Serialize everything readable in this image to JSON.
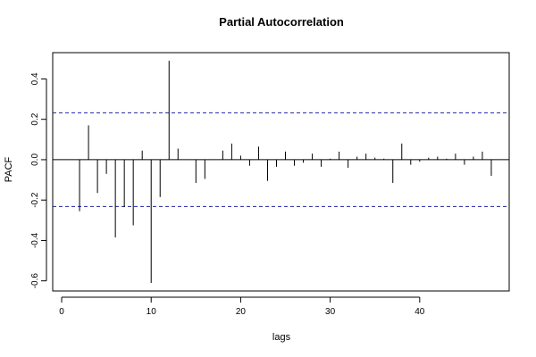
{
  "chart_data": {
    "type": "bar",
    "title": "Partial Autocorrelation",
    "xlabel": "lags",
    "ylabel": "PACF",
    "x": [
      1,
      2,
      3,
      4,
      5,
      6,
      7,
      8,
      9,
      10,
      11,
      12,
      13,
      14,
      15,
      16,
      17,
      18,
      19,
      20,
      21,
      22,
      23,
      24,
      25,
      26,
      27,
      28,
      29,
      30,
      31,
      32,
      33,
      34,
      35,
      36,
      37,
      38,
      39,
      40,
      41,
      42,
      43,
      44,
      45,
      46,
      47,
      48
    ],
    "values": [
      0.0,
      -0.255,
      0.17,
      -0.165,
      -0.07,
      -0.385,
      -0.235,
      -0.325,
      0.045,
      -0.61,
      -0.185,
      0.49,
      0.055,
      0.0,
      -0.115,
      -0.095,
      0.0,
      0.045,
      0.08,
      0.02,
      -0.03,
      0.065,
      -0.105,
      -0.035,
      0.04,
      -0.03,
      -0.015,
      0.03,
      -0.035,
      0.005,
      0.04,
      -0.04,
      0.015,
      0.03,
      0.01,
      0.005,
      -0.115,
      0.08,
      -0.025,
      -0.01,
      0.01,
      0.015,
      0.005,
      0.03,
      -0.025,
      0.015,
      0.04,
      -0.08
    ],
    "confidence_band": [
      0.232,
      -0.232
    ],
    "xlim": [
      -1,
      50
    ],
    "ylim": [
      -0.65,
      0.53
    ],
    "x_ticks": [
      0,
      10,
      20,
      30,
      40
    ],
    "y_ticks": [
      -0.6,
      -0.4,
      -0.2,
      0.0,
      0.2,
      0.4
    ],
    "x_tick_labels": [
      "0",
      "10",
      "20",
      "30",
      "40"
    ],
    "y_tick_labels": [
      "-0.6",
      "-0.4",
      "-0.2",
      "0.0",
      "0.2",
      "0.4"
    ],
    "grid": false,
    "colors": {
      "bars": "#000000",
      "zero_line": "#000000",
      "confidence": "#2020a0",
      "frame": "#000000"
    }
  }
}
